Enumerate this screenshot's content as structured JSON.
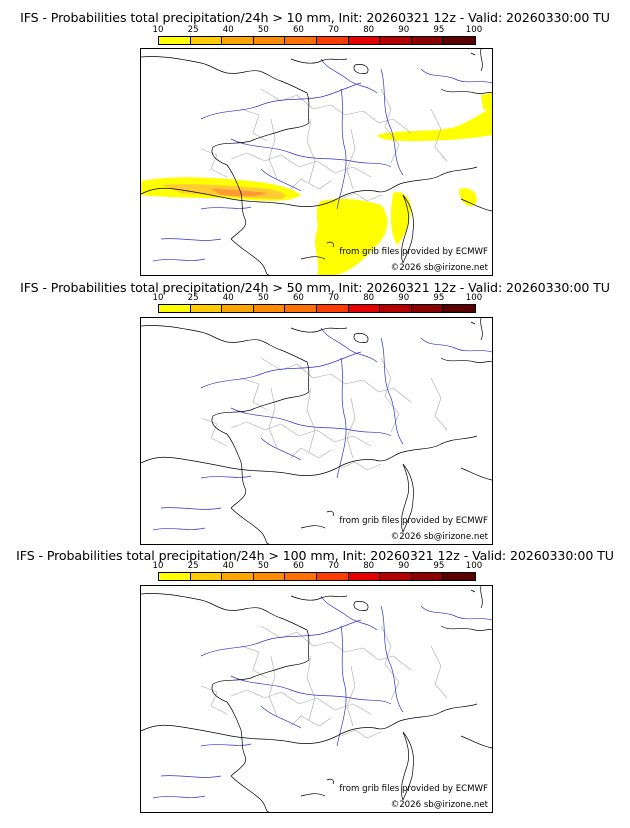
{
  "panels": [
    {
      "title": "IFS - Probabilities total precipitation/24h > 10 mm, Init: 20260321 12z - Valid: 20260330:00 TU",
      "has_precip": true
    },
    {
      "title": "IFS - Probabilities total precipitation/24h > 50 mm, Init: 20260321 12z - Valid: 20260330:00 TU",
      "has_precip": false
    },
    {
      "title": "IFS - Probabilities total precipitation/24h > 100 mm, Init: 20260321 12z - Valid: 20260330:00 TU",
      "has_precip": false
    }
  ],
  "scale": {
    "ticks": [
      "10",
      "25",
      "40",
      "50",
      "60",
      "70",
      "80",
      "90",
      "95",
      "100"
    ],
    "colors": [
      "#ffff00",
      "#ffcc00",
      "#ffa500",
      "#ff8c00",
      "#ff7000",
      "#ff3c00",
      "#e60000",
      "#b40000",
      "#8b0000",
      "#5a0000"
    ]
  },
  "credits": {
    "source": "from grib files provided by ECMWF",
    "copyright": "©2026 sb@irizone.net"
  },
  "colors": {
    "coast": "#000000",
    "rivers": "#3333cc",
    "borders": "#aaaaaa",
    "precip_low": "#ffff00",
    "precip_mid": "#ffcc33",
    "precip_high": "#ff9933"
  }
}
